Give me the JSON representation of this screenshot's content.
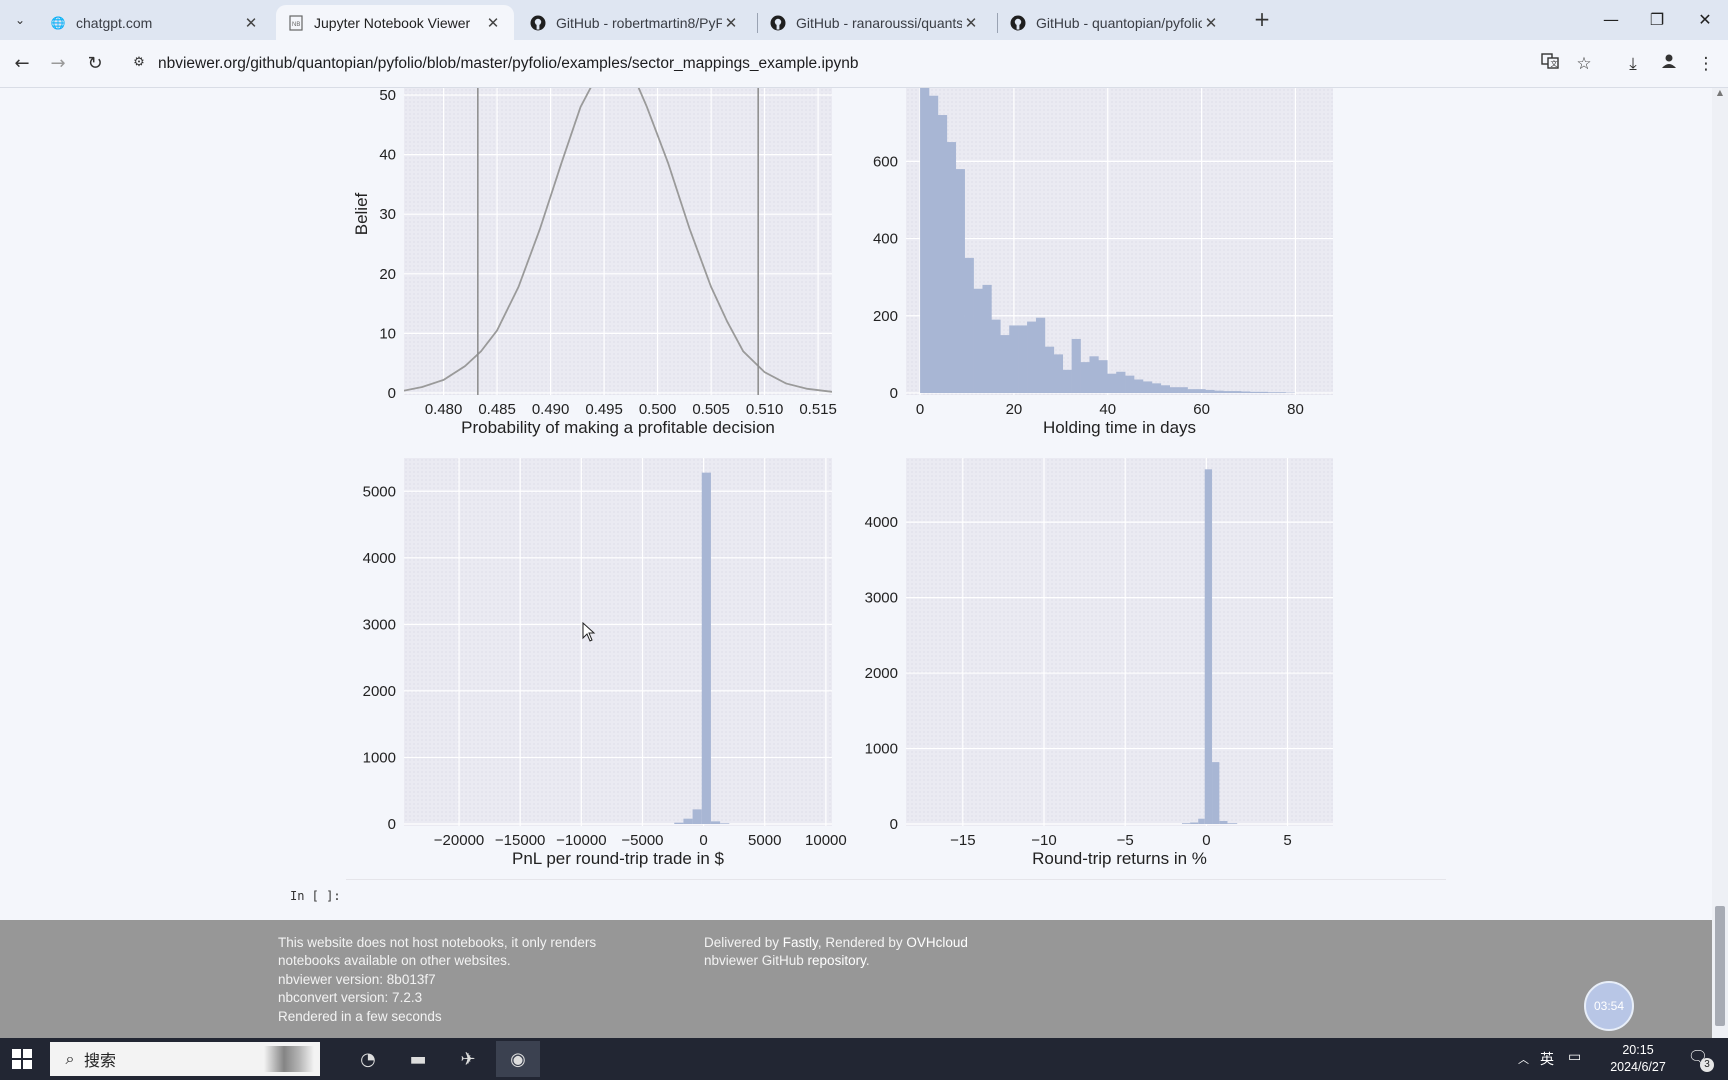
{
  "browser": {
    "tabs": [
      {
        "title": "chatgpt.com",
        "favicon": "globe-icon",
        "active": false
      },
      {
        "title": "Jupyter Notebook Viewer",
        "favicon": "nbviewer-icon",
        "active": true
      },
      {
        "title": "GitHub - robertmartin8/PyPo",
        "favicon": "github-icon",
        "active": false
      },
      {
        "title": "GitHub - ranaroussi/quantst",
        "favicon": "github-icon",
        "active": false
      },
      {
        "title": "GitHub - quantopian/pyfolio",
        "favicon": "github-icon",
        "active": false
      }
    ],
    "new_tab_glyph": "+",
    "url": "nbviewer.org/github/quantopian/pyfolio/blob/master/pyfolio/examples/sector_mappings_example.ipynb"
  },
  "notebook": {
    "empty_prompt": "In [ ]:"
  },
  "chart_data": [
    {
      "type": "line",
      "xlabel": "Probability of making a profitable decision",
      "ylabel": "Belief",
      "xlim": [
        0.4763,
        0.5163
      ],
      "ylim": [
        0,
        50
      ],
      "xticks": [
        "0.480",
        "0.485",
        "0.490",
        "0.495",
        "0.500",
        "0.505",
        "0.510",
        "0.515"
      ],
      "yticks": [
        "0",
        "10",
        "20",
        "30",
        "40",
        "50"
      ],
      "grid": true,
      "series": [
        {
          "x": [
            0.4763,
            0.478,
            0.48,
            0.482,
            0.4835,
            0.485,
            0.487,
            0.489,
            0.491,
            0.4928,
            0.495,
            0.4972,
            0.499,
            0.501,
            0.503,
            0.505,
            0.5065,
            0.508,
            0.51,
            0.512,
            0.514,
            0.5163
          ],
          "y": [
            0.4,
            1.0,
            2.2,
            4.5,
            7.0,
            10.5,
            17.8,
            27.5,
            38.5,
            48.0,
            55.5,
            55.5,
            48.0,
            38.5,
            27.5,
            17.8,
            12.0,
            7.0,
            3.5,
            1.6,
            0.7,
            0.2
          ]
        }
      ],
      "vlines": [
        0.4832,
        0.5094
      ]
    },
    {
      "type": "bar",
      "xlabel": "Holding time in days",
      "ylabel": "",
      "xlim": [
        -3,
        88
      ],
      "ylim": [
        0,
        790
      ],
      "xticks": [
        "0",
        "20",
        "40",
        "60",
        "80"
      ],
      "yticks": [
        "0",
        "200",
        "400",
        "600"
      ],
      "grid": true,
      "bin_width": 1.9,
      "bin_start": 0,
      "values": [
        800,
        770,
        720,
        650,
        580,
        350,
        270,
        280,
        190,
        150,
        175,
        175,
        185,
        195,
        120,
        100,
        60,
        140,
        80,
        95,
        85,
        50,
        55,
        45,
        35,
        30,
        25,
        20,
        15,
        15,
        10,
        10,
        8,
        6,
        5,
        5,
        4,
        3,
        3,
        2,
        2,
        1
      ]
    },
    {
      "type": "bar",
      "xlabel": "PnL per round-trip trade in $",
      "ylabel": "",
      "xlim": [
        -24500,
        10500
      ],
      "ylim": [
        0,
        5500
      ],
      "xticks": [
        "−20000",
        "−15000",
        "−10000",
        "−5000",
        "0",
        "5000",
        "10000"
      ],
      "yticks": [
        "0",
        "1000",
        "2000",
        "3000",
        "4000",
        "5000"
      ],
      "grid": true,
      "bins": [
        {
          "x0": -2400,
          "x1": -1650,
          "v": 20
        },
        {
          "x0": -1650,
          "x1": -900,
          "v": 80
        },
        {
          "x0": -900,
          "x1": -150,
          "v": 220
        },
        {
          "x0": -150,
          "x1": 600,
          "v": 5280
        },
        {
          "x0": 600,
          "x1": 1350,
          "v": 40
        },
        {
          "x0": 1350,
          "x1": 2100,
          "v": 10
        }
      ]
    },
    {
      "type": "bar",
      "xlabel": "Round-trip returns in %",
      "ylabel": "",
      "xlim": [
        -18.5,
        7.8
      ],
      "ylim": [
        0,
        4850
      ],
      "xticks": [
        "−15",
        "−10",
        "−5",
        "0",
        "5"
      ],
      "yticks": [
        "0",
        "1000",
        "2000",
        "3000",
        "4000"
      ],
      "grid": true,
      "bins": [
        {
          "x0": -1.5,
          "x1": -1.0,
          "v": 10
        },
        {
          "x0": -1.0,
          "x1": -0.5,
          "v": 20
        },
        {
          "x0": -0.5,
          "x1": -0.1,
          "v": 70
        },
        {
          "x0": -0.1,
          "x1": 0.35,
          "v": 4700
        },
        {
          "x0": 0.35,
          "x1": 0.8,
          "v": 820
        },
        {
          "x0": 0.8,
          "x1": 1.3,
          "v": 40
        },
        {
          "x0": 1.3,
          "x1": 1.9,
          "v": 10
        }
      ]
    }
  ],
  "footer": {
    "hosting_note_1": "This website does not host notebooks, it only renders",
    "hosting_note_2": "notebooks available on other websites.",
    "nbviewer_version": "nbviewer version: 8b013f7",
    "nbconvert_version": "nbconvert version: 7.2.3",
    "rendered": "Rendered in a few seconds",
    "delivered_prefix": "Delivered by ",
    "delivered_by": "Fastly",
    "rendered_prefix": ", Rendered by ",
    "rendered_by": "OVHcloud",
    "gh_prefix": "nbviewer GitHub ",
    "gh_link": "repository",
    "gh_suffix": "."
  },
  "overlay": {
    "timer": "03:54"
  },
  "taskbar": {
    "search_placeholder": "搜索",
    "ime": "英",
    "time": "20:15",
    "date": "2024/6/27",
    "notification_count": "3"
  },
  "colors": {
    "bar": "#a8b6d4",
    "line": "#9a9a9a",
    "panel": "#eaeaf2",
    "footer": "#979797",
    "taskbar": "#222633"
  }
}
